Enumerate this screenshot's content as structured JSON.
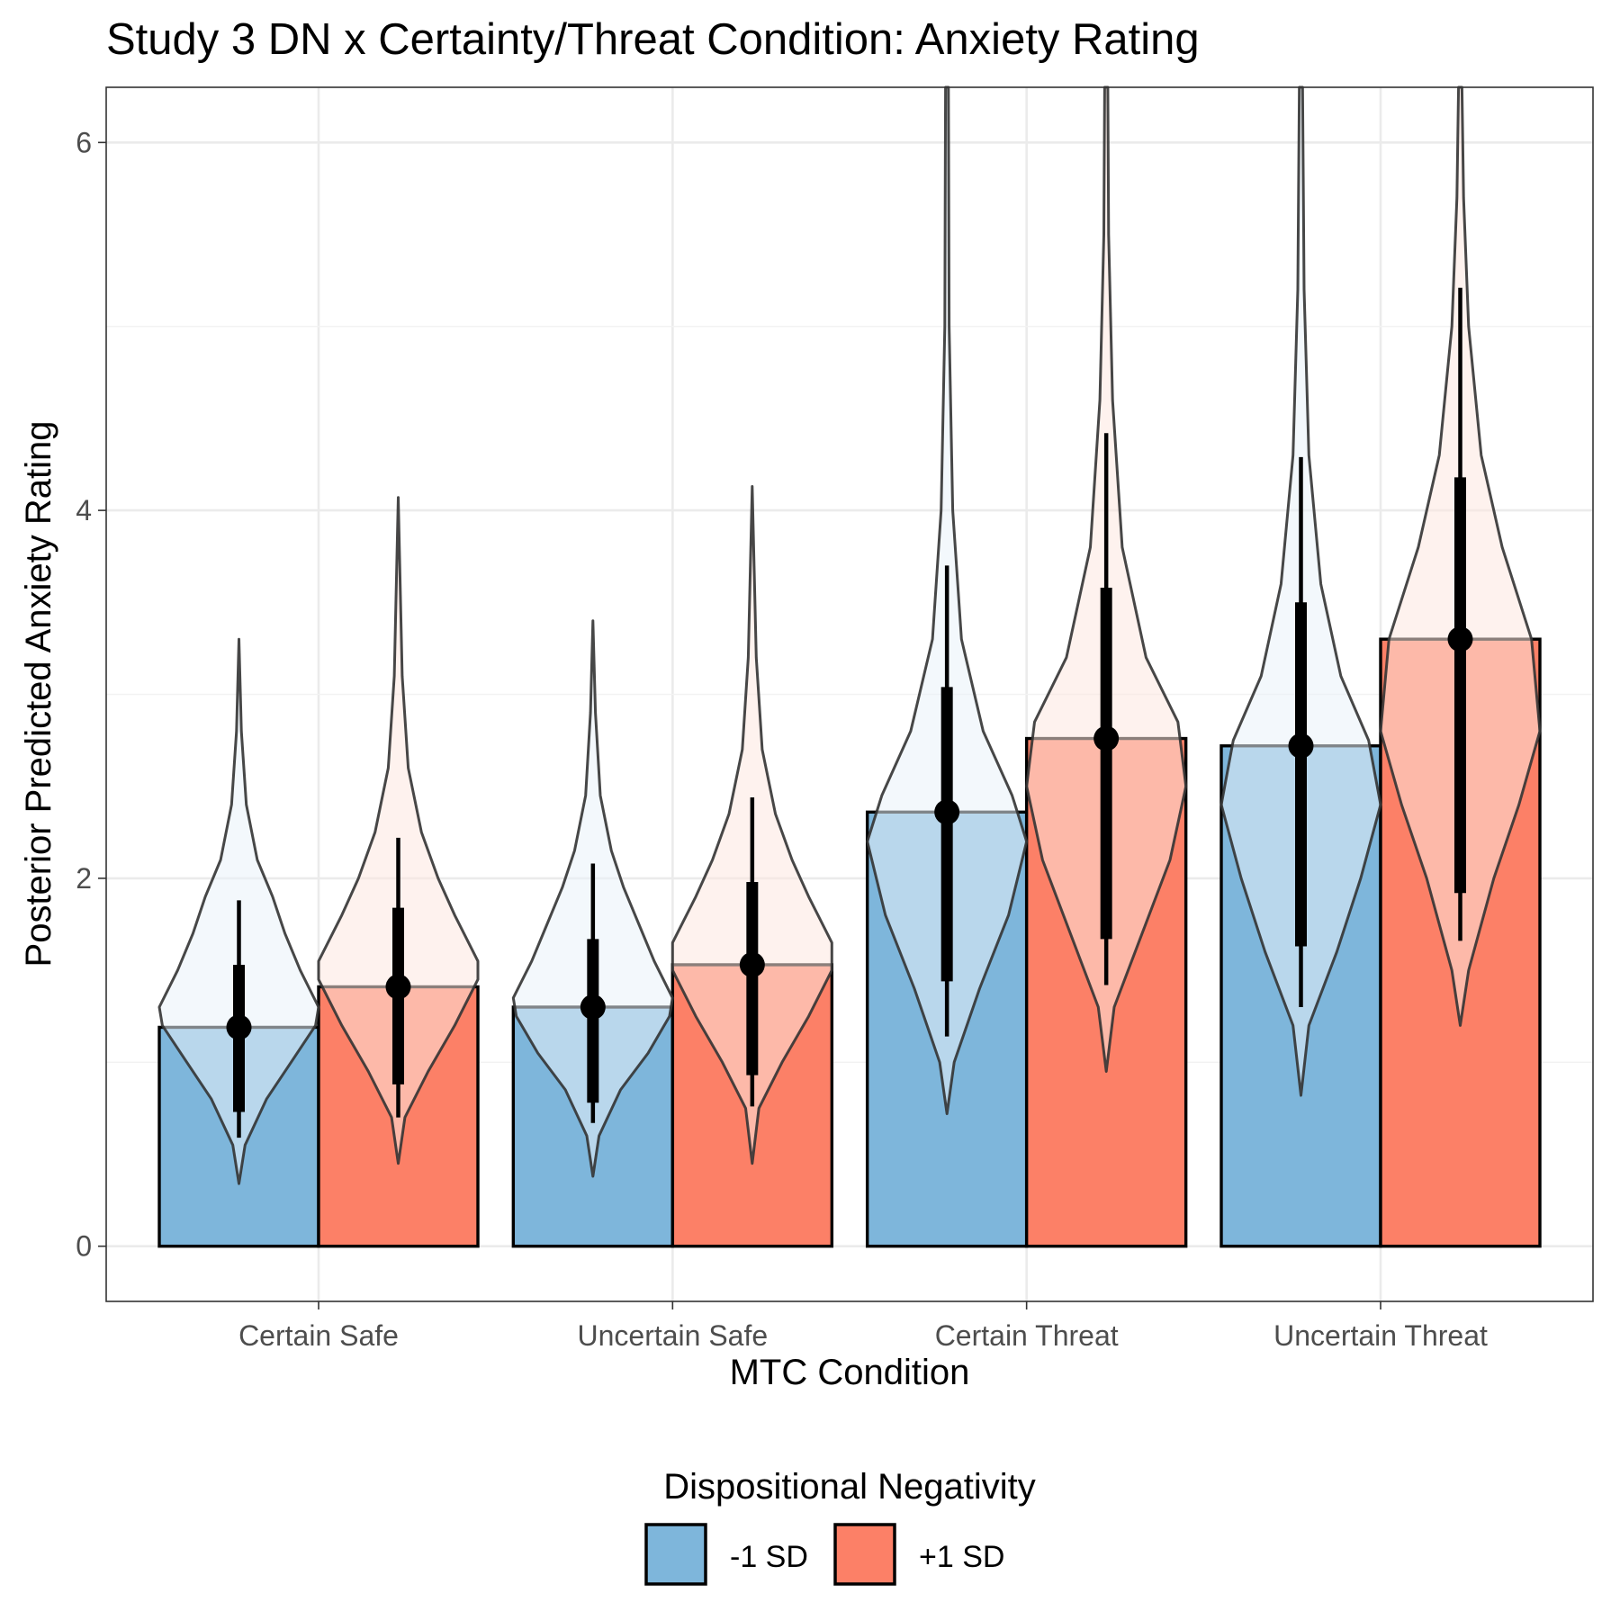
{
  "chart_data": {
    "type": "bar",
    "title": "Study 3 DN x Certainty/Threat Condition: Anxiety Rating",
    "xlabel": "MTC Condition",
    "ylabel": "Posterior Predicted Anxiety Rating",
    "categories": [
      "Certain Safe",
      "Uncertain Safe",
      "Certain Threat",
      "Uncertain Threat"
    ],
    "ylim": [
      -0.3,
      6.3
    ],
    "yticks": [
      0,
      2,
      4,
      6
    ],
    "ytick_labels": [
      "0",
      "2",
      "4",
      "6"
    ],
    "grid": true,
    "legend": {
      "title": "Dispositional Negativity",
      "position": "bottom"
    },
    "series": [
      {
        "name": "-1 SD",
        "color": "#7EB6DB",
        "violin_fill": "#EAF2FA",
        "values": [
          1.19,
          1.3,
          2.36,
          2.72
        ],
        "interval_66": [
          [
            0.73,
            1.53
          ],
          [
            0.78,
            1.67
          ],
          [
            1.44,
            3.04
          ],
          [
            1.63,
            3.5
          ]
        ],
        "interval_95": [
          [
            0.59,
            1.88
          ],
          [
            0.67,
            2.08
          ],
          [
            1.14,
            3.7
          ],
          [
            1.3,
            4.29
          ]
        ],
        "violin": [
          {
            "range": [
              0.34,
              3.3
            ],
            "profile": [
              [
                0.34,
                0
              ],
              [
                0.55,
                0.01
              ],
              [
                0.8,
                0.045
              ],
              [
                1.0,
                0.085
              ],
              [
                1.2,
                0.125
              ],
              [
                1.3,
                0.13
              ],
              [
                1.5,
                0.1
              ],
              [
                1.7,
                0.075
              ],
              [
                1.9,
                0.055
              ],
              [
                2.1,
                0.03
              ],
              [
                2.4,
                0.012
              ],
              [
                2.8,
                0.004
              ],
              [
                3.3,
                0
              ]
            ]
          },
          {
            "range": [
              0.38,
              3.4
            ],
            "profile": [
              [
                0.38,
                0
              ],
              [
                0.6,
                0.01
              ],
              [
                0.85,
                0.045
              ],
              [
                1.05,
                0.09
              ],
              [
                1.25,
                0.125
              ],
              [
                1.35,
                0.13
              ],
              [
                1.55,
                0.1
              ],
              [
                1.75,
                0.075
              ],
              [
                1.95,
                0.05
              ],
              [
                2.15,
                0.03
              ],
              [
                2.45,
                0.012
              ],
              [
                2.9,
                0.004
              ],
              [
                3.4,
                0
              ]
            ]
          },
          {
            "range": [
              0.72,
              6.3
            ],
            "profile": [
              [
                0.72,
                0
              ],
              [
                1.0,
                0.01
              ],
              [
                1.4,
                0.045
              ],
              [
                1.8,
                0.085
              ],
              [
                2.2,
                0.11
              ],
              [
                2.45,
                0.09
              ],
              [
                2.8,
                0.05
              ],
              [
                3.3,
                0.02
              ],
              [
                4.0,
                0.008
              ],
              [
                5.0,
                0.003
              ],
              [
                6.3,
                0.002
              ]
            ]
          },
          {
            "range": [
              0.82,
              6.3
            ],
            "profile": [
              [
                0.82,
                0
              ],
              [
                1.2,
                0.01
              ],
              [
                1.6,
                0.045
              ],
              [
                2.0,
                0.075
              ],
              [
                2.4,
                0.1
              ],
              [
                2.75,
                0.085
              ],
              [
                3.1,
                0.05
              ],
              [
                3.6,
                0.025
              ],
              [
                4.3,
                0.01
              ],
              [
                5.2,
                0.004
              ],
              [
                6.3,
                0.002
              ]
            ]
          }
        ]
      },
      {
        "name": "+1 SD",
        "color": "#FC8067",
        "violin_fill": "#FDE7E0",
        "values": [
          1.41,
          1.53,
          2.76,
          3.3
        ],
        "interval_66": [
          [
            0.88,
            1.84
          ],
          [
            0.93,
            1.98
          ],
          [
            1.67,
            3.58
          ],
          [
            1.92,
            4.18
          ]
        ],
        "interval_95": [
          [
            0.7,
            2.22
          ],
          [
            0.76,
            2.44
          ],
          [
            1.42,
            4.42
          ],
          [
            1.66,
            5.21
          ]
        ],
        "violin": [
          {
            "range": [
              0.45,
              4.07
            ],
            "profile": [
              [
                0.45,
                0
              ],
              [
                0.7,
                0.01
              ],
              [
                0.95,
                0.045
              ],
              [
                1.2,
                0.085
              ],
              [
                1.45,
                0.12
              ],
              [
                1.55,
                0.12
              ],
              [
                1.8,
                0.085
              ],
              [
                2.0,
                0.06
              ],
              [
                2.25,
                0.035
              ],
              [
                2.6,
                0.015
              ],
              [
                3.1,
                0.006
              ],
              [
                4.07,
                0
              ]
            ]
          },
          {
            "range": [
              0.45,
              4.13
            ],
            "profile": [
              [
                0.45,
                0
              ],
              [
                0.75,
                0.01
              ],
              [
                1.0,
                0.045
              ],
              [
                1.25,
                0.085
              ],
              [
                1.5,
                0.12
              ],
              [
                1.65,
                0.12
              ],
              [
                1.9,
                0.085
              ],
              [
                2.1,
                0.06
              ],
              [
                2.35,
                0.035
              ],
              [
                2.7,
                0.015
              ],
              [
                3.2,
                0.006
              ],
              [
                4.13,
                0
              ]
            ]
          },
          {
            "range": [
              0.95,
              6.3
            ],
            "profile": [
              [
                0.95,
                0
              ],
              [
                1.3,
                0.01
              ],
              [
                1.7,
                0.045
              ],
              [
                2.1,
                0.08
              ],
              [
                2.5,
                0.1
              ],
              [
                2.85,
                0.09
              ],
              [
                3.2,
                0.05
              ],
              [
                3.8,
                0.02
              ],
              [
                4.6,
                0.008
              ],
              [
                5.5,
                0.003
              ],
              [
                6.3,
                0.002
              ]
            ]
          },
          {
            "range": [
              1.2,
              6.3
            ],
            "profile": [
              [
                1.2,
                0
              ],
              [
                1.5,
                0.01
              ],
              [
                2.0,
                0.04
              ],
              [
                2.4,
                0.07
              ],
              [
                2.8,
                0.095
              ],
              [
                3.3,
                0.085
              ],
              [
                3.8,
                0.05
              ],
              [
                4.3,
                0.025
              ],
              [
                5.0,
                0.01
              ],
              [
                5.7,
                0.004
              ],
              [
                6.3,
                0.002
              ]
            ]
          }
        ]
      }
    ]
  }
}
